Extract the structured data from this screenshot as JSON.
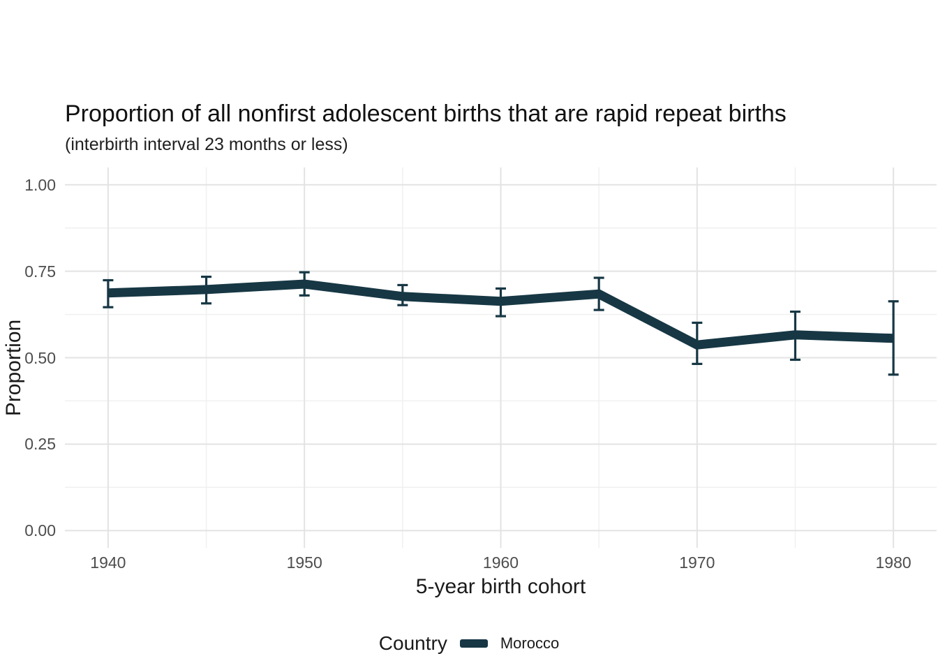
{
  "chart_data": {
    "type": "line",
    "title": "Proportion of all nonfirst adolescent births that are rapid repeat births",
    "subtitle": "(interbirth interval 23 months or less)",
    "xlabel": "5-year birth cohort",
    "ylabel": "Proportion",
    "legend": {
      "title": "Country",
      "position": "bottom",
      "entries": [
        {
          "label": "Morocco",
          "color": "#173744"
        }
      ]
    },
    "series": [
      {
        "name": "Morocco",
        "x": [
          1940,
          1945,
          1950,
          1955,
          1960,
          1965,
          1970,
          1975,
          1980
        ],
        "y": [
          0.687,
          0.697,
          0.713,
          0.677,
          0.663,
          0.684,
          0.537,
          0.566,
          0.556
        ],
        "err_low": [
          0.646,
          0.657,
          0.68,
          0.652,
          0.62,
          0.638,
          0.482,
          0.494,
          0.451
        ],
        "err_high": [
          0.724,
          0.734,
          0.747,
          0.71,
          0.7,
          0.731,
          0.601,
          0.633,
          0.663
        ]
      }
    ],
    "x_major_ticks": [
      1940,
      1950,
      1960,
      1970,
      1980
    ],
    "x_minor_ticks": [
      1945,
      1955,
      1965,
      1975
    ],
    "y_major_ticks": [
      0,
      0.25,
      0.5,
      0.75,
      1.0
    ],
    "y_tick_labels": [
      "0.00",
      "0.25",
      "0.50",
      "0.75",
      "1.00"
    ],
    "y_minor_ticks": [
      0.125,
      0.375,
      0.625,
      0.875
    ],
    "xlim": [
      1937.8,
      1982.2
    ],
    "ylim": [
      -0.05,
      1.05
    ],
    "grid": true,
    "colors": {
      "line": "#173744",
      "grid_major": "#e3e3e3",
      "grid_minor": "#f0f0f0",
      "tick_text": "#4d4d4d",
      "title_text": "#111111",
      "background": "#ffffff"
    }
  }
}
